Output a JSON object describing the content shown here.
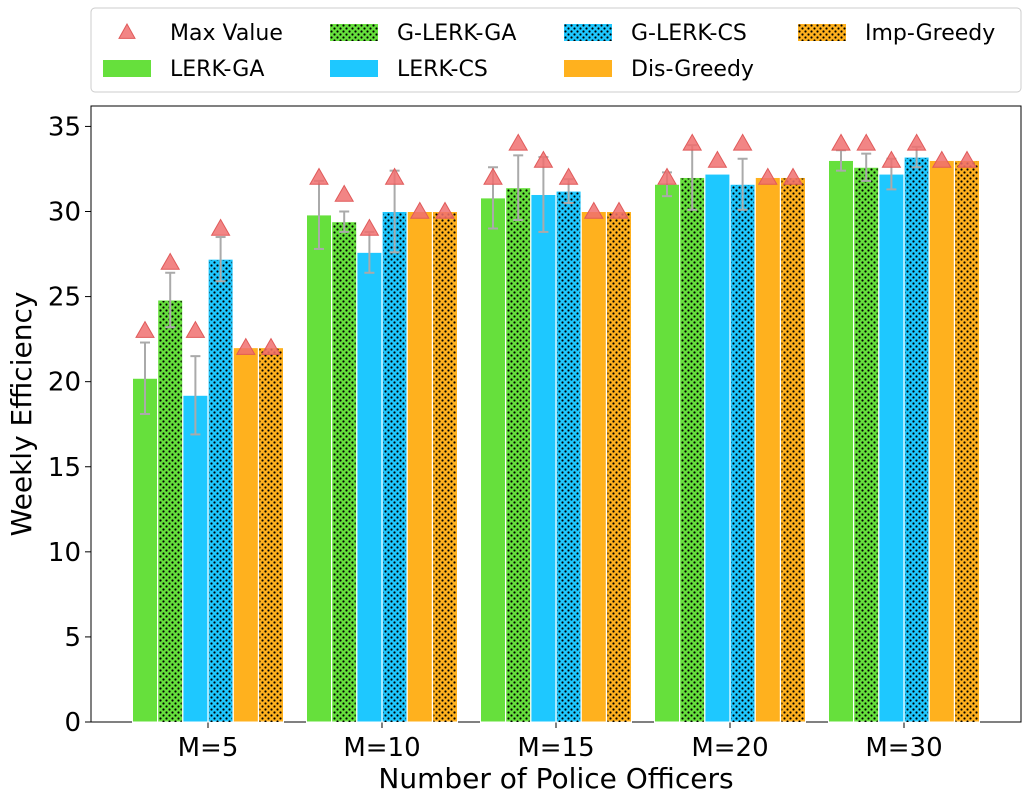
{
  "chart_data": {
    "type": "bar",
    "title": "",
    "xlabel": "Number of Police Officers",
    "ylabel": "Weekly Efficiency",
    "ylim": [
      0,
      36.2
    ],
    "yticks": [
      0,
      5,
      10,
      15,
      20,
      25,
      30,
      35
    ],
    "categories": [
      "M=5",
      "M=10",
      "M=15",
      "M=20",
      "M=30"
    ],
    "legend_position": "top, outside plot, 4 columns",
    "grid": false,
    "series": [
      {
        "name": "LERK-GA",
        "color": "#66e03c",
        "hatch": false,
        "values": [
          20.2,
          29.8,
          30.8,
          31.6,
          33.0
        ],
        "err": [
          2.1,
          2.0,
          1.8,
          0.7,
          0.6
        ],
        "max": [
          23,
          32,
          32,
          32,
          34
        ]
      },
      {
        "name": "G-LERK-GA",
        "color": "#66e03c",
        "hatch": true,
        "values": [
          24.8,
          29.4,
          31.4,
          32.0,
          32.6
        ],
        "err": [
          1.6,
          0.6,
          1.9,
          1.9,
          0.8
        ],
        "max": [
          27,
          31,
          34,
          34,
          34
        ]
      },
      {
        "name": "LERK-CS",
        "color": "#1ec8ff",
        "hatch": false,
        "values": [
          19.2,
          27.6,
          31.0,
          32.2,
          32.2
        ],
        "err": [
          2.3,
          1.2,
          2.2,
          0.0,
          0.9
        ],
        "max": [
          23,
          29,
          33,
          33,
          33
        ]
      },
      {
        "name": "G-LERK-CS",
        "color": "#1ec8ff",
        "hatch": true,
        "values": [
          27.2,
          30.0,
          31.2,
          31.6,
          33.2
        ],
        "err": [
          1.3,
          2.4,
          0.7,
          1.5,
          0.6
        ],
        "max": [
          29,
          32,
          32,
          34,
          34
        ]
      },
      {
        "name": "Dis-Greedy",
        "color": "#ffb11e",
        "hatch": false,
        "values": [
          22.0,
          30.0,
          30.0,
          32.0,
          33.0
        ],
        "err": [
          0,
          0,
          0,
          0,
          0
        ],
        "max": [
          22,
          30,
          30,
          32,
          33
        ]
      },
      {
        "name": "Imp-Greedy",
        "color": "#ffb11e",
        "hatch": true,
        "values": [
          22.0,
          30.0,
          30.0,
          32.0,
          33.0
        ],
        "err": [
          0,
          0,
          0,
          0,
          0
        ],
        "max": [
          22,
          30,
          30,
          32,
          33
        ]
      }
    ],
    "max_marker": {
      "name": "Max Value",
      "color": "#f07070"
    },
    "legend_order": [
      "Max Value",
      "LERK-GA",
      "G-LERK-GA",
      "LERK-CS",
      "G-LERK-CS",
      "Dis-Greedy",
      "Imp-Greedy"
    ]
  }
}
